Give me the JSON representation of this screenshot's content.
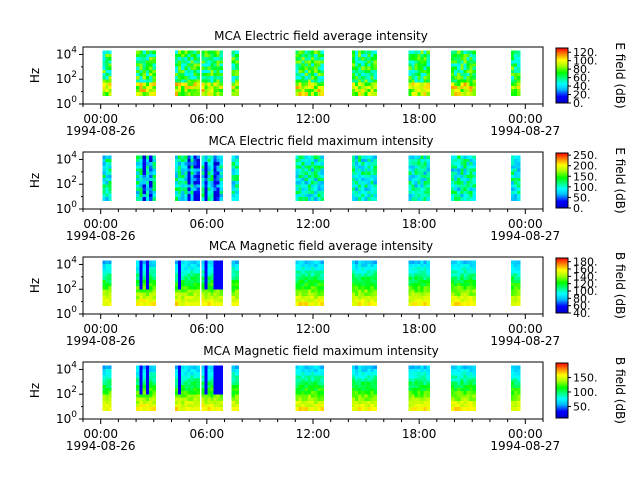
{
  "figure": {
    "background": "#ffffff"
  },
  "chart_data": [
    {
      "type": "heatmap",
      "title": "MCA  Electric field average intensity",
      "ylabel": "Hz",
      "y_scale": "log",
      "ylim": [
        1,
        40000
      ],
      "y_ticks": [
        {
          "value": 1,
          "base": "10",
          "exp": "0"
        },
        {
          "value": 100,
          "base": "10",
          "exp": "2"
        },
        {
          "value": 10000,
          "base": "10",
          "exp": "4"
        }
      ],
      "x_ticks": [
        {
          "hour": 0,
          "time": "00:00",
          "date": "1994-08-26"
        },
        {
          "hour": 6,
          "time": "06:00",
          "date": ""
        },
        {
          "hour": 12,
          "time": "12:00",
          "date": ""
        },
        {
          "hour": 18,
          "time": "18:00",
          "date": ""
        },
        {
          "hour": 24,
          "time": "00:00",
          "date": "1994-08-27"
        }
      ],
      "xlim_hours": [
        -1.0,
        25.0
      ],
      "freq_range": [
        5,
        20000
      ],
      "segments_hours": [
        [
          0.1,
          0.6
        ],
        [
          2.0,
          3.1
        ],
        [
          4.2,
          5.6
        ],
        [
          5.7,
          6.9
        ],
        [
          7.4,
          7.8
        ],
        [
          11.0,
          12.6
        ],
        [
          14.2,
          15.6
        ],
        [
          17.4,
          18.6
        ],
        [
          19.8,
          21.2
        ],
        [
          23.2,
          23.7
        ]
      ],
      "base_level": 0.5,
      "colorbar": {
        "label": "E field (dB)",
        "min": 0,
        "max": 130,
        "ticks": [
          "0.",
          "20.",
          "40.",
          "60.",
          "80.",
          "100.",
          "120."
        ],
        "tick_values": [
          0,
          20,
          40,
          60,
          80,
          100,
          120
        ]
      }
    },
    {
      "type": "heatmap",
      "title": "MCA  Electric field maximum intensity",
      "ylabel": "Hz",
      "y_scale": "log",
      "ylim": [
        1,
        40000
      ],
      "y_ticks": [
        {
          "value": 1,
          "base": "10",
          "exp": "0"
        },
        {
          "value": 100,
          "base": "10",
          "exp": "2"
        },
        {
          "value": 10000,
          "base": "10",
          "exp": "4"
        }
      ],
      "x_ticks": [
        {
          "hour": 0,
          "time": "00:00",
          "date": "1994-08-26"
        },
        {
          "hour": 6,
          "time": "06:00",
          "date": ""
        },
        {
          "hour": 12,
          "time": "12:00",
          "date": ""
        },
        {
          "hour": 18,
          "time": "18:00",
          "date": ""
        },
        {
          "hour": 24,
          "time": "00:00",
          "date": "1994-08-27"
        }
      ],
      "xlim_hours": [
        -1.0,
        25.0
      ],
      "freq_range": [
        5,
        20000
      ],
      "segments_hours": [
        [
          0.1,
          0.6
        ],
        [
          2.0,
          3.1
        ],
        [
          4.2,
          5.6
        ],
        [
          5.7,
          6.9
        ],
        [
          7.4,
          7.8
        ],
        [
          11.0,
          12.6
        ],
        [
          14.2,
          15.6
        ],
        [
          17.4,
          18.6
        ],
        [
          19.8,
          21.2
        ],
        [
          23.2,
          23.7
        ]
      ],
      "base_level": 0.38,
      "colorbar": {
        "label": "E field (dB)",
        "min": 0,
        "max": 260,
        "ticks": [
          "0.",
          "50.",
          "100.",
          "150.",
          "200.",
          "250."
        ],
        "tick_values": [
          0,
          50,
          100,
          150,
          200,
          250
        ]
      }
    },
    {
      "type": "heatmap",
      "title": "MCA  Magnetic field average intensity",
      "ylabel": "Hz",
      "y_scale": "log",
      "ylim": [
        1,
        40000
      ],
      "y_ticks": [
        {
          "value": 1,
          "base": "10",
          "exp": "0"
        },
        {
          "value": 100,
          "base": "10",
          "exp": "2"
        },
        {
          "value": 10000,
          "base": "10",
          "exp": "4"
        }
      ],
      "x_ticks": [
        {
          "hour": 0,
          "time": "00:00",
          "date": "1994-08-26"
        },
        {
          "hour": 6,
          "time": "06:00",
          "date": ""
        },
        {
          "hour": 12,
          "time": "12:00",
          "date": ""
        },
        {
          "hour": 18,
          "time": "18:00",
          "date": ""
        },
        {
          "hour": 24,
          "time": "00:00",
          "date": "1994-08-27"
        }
      ],
      "xlim_hours": [
        -1.0,
        25.0
      ],
      "freq_range": [
        5,
        20000
      ],
      "segments_hours": [
        [
          0.1,
          0.6
        ],
        [
          2.0,
          3.1
        ],
        [
          4.2,
          5.6
        ],
        [
          5.7,
          6.9
        ],
        [
          7.4,
          7.8
        ],
        [
          11.0,
          12.6
        ],
        [
          14.2,
          15.6
        ],
        [
          17.4,
          18.6
        ],
        [
          19.8,
          21.2
        ],
        [
          23.2,
          23.7
        ]
      ],
      "base_level": 0.45,
      "colorbar": {
        "label": "B field (dB)",
        "min": 40,
        "max": 190,
        "ticks": [
          "40.",
          "60.",
          "80.",
          "100.",
          "120.",
          "140.",
          "160.",
          "180."
        ],
        "tick_values": [
          40,
          60,
          80,
          100,
          120,
          140,
          160,
          180
        ]
      }
    },
    {
      "type": "heatmap",
      "title": "MCA  Magnetic field maximum intensity",
      "ylabel": "Hz",
      "y_scale": "log",
      "ylim": [
        1,
        40000
      ],
      "y_ticks": [
        {
          "value": 1,
          "base": "10",
          "exp": "0"
        },
        {
          "value": 100,
          "base": "10",
          "exp": "2"
        },
        {
          "value": 10000,
          "base": "10",
          "exp": "4"
        }
      ],
      "x_ticks": [
        {
          "hour": 0,
          "time": "00:00",
          "date": "1994-08-26"
        },
        {
          "hour": 6,
          "time": "06:00",
          "date": ""
        },
        {
          "hour": 12,
          "time": "12:00",
          "date": ""
        },
        {
          "hour": 18,
          "time": "18:00",
          "date": ""
        },
        {
          "hour": 24,
          "time": "00:00",
          "date": "1994-08-27"
        }
      ],
      "xlim_hours": [
        -1.0,
        25.0
      ],
      "freq_range": [
        5,
        20000
      ],
      "segments_hours": [
        [
          0.1,
          0.6
        ],
        [
          2.0,
          3.1
        ],
        [
          4.2,
          5.6
        ],
        [
          5.7,
          6.9
        ],
        [
          7.4,
          7.8
        ],
        [
          11.0,
          12.6
        ],
        [
          14.2,
          15.6
        ],
        [
          17.4,
          18.6
        ],
        [
          19.8,
          21.2
        ],
        [
          23.2,
          23.7
        ]
      ],
      "base_level": 0.45,
      "colorbar": {
        "label": "B field (dB)",
        "min": 10,
        "max": 200,
        "ticks": [
          "50.",
          "100.",
          "150."
        ],
        "tick_values": [
          50,
          100,
          150
        ]
      }
    }
  ]
}
